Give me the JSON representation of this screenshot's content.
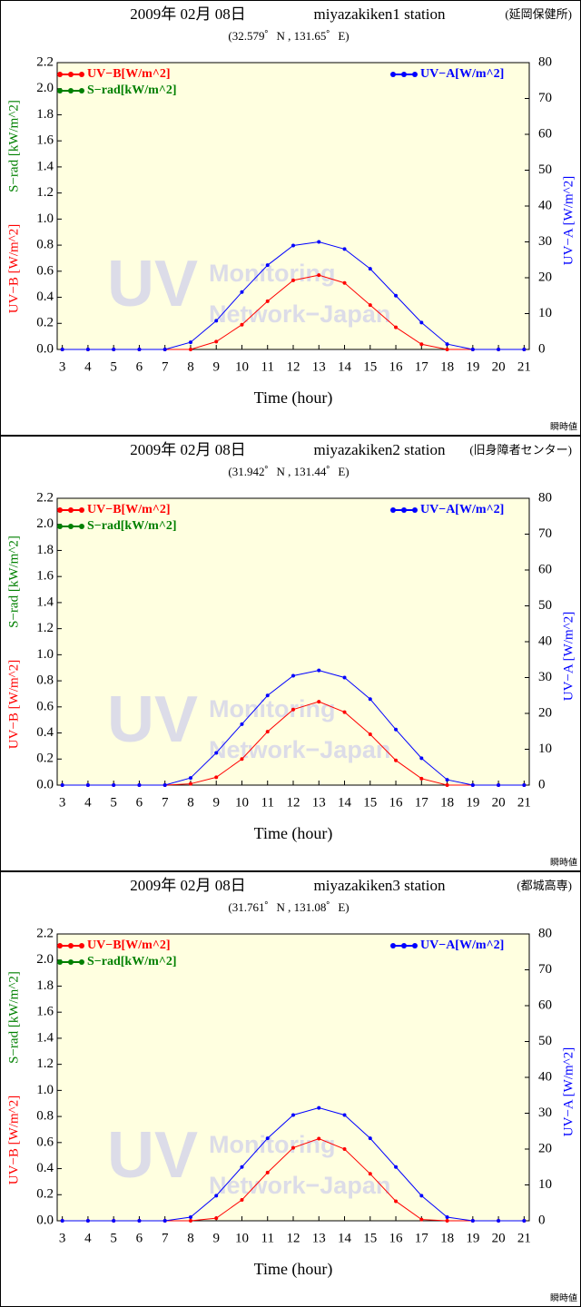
{
  "chart_data": [
    {
      "type": "line",
      "title": "2009年 02月 08日",
      "station": "miyazakiken1 station",
      "location": "(延岡保健所)",
      "subtitle": "(32.579゜N , 131.65゜E)",
      "xlabel": "Time (hour)",
      "ylabel": [
        "UV−B [W/m^2]",
        "S−rad [kW/m^2]"
      ],
      "y2label": "UV−A [W/m^2]",
      "note": "瞬時値",
      "watermark": [
        "UV",
        "Monitoring",
        "Network−Japan"
      ],
      "x": [
        3,
        4,
        5,
        6,
        7,
        8,
        9,
        10,
        11,
        12,
        13,
        14,
        15,
        16,
        17,
        18,
        19,
        20,
        21
      ],
      "xlim": [
        2.8,
        21.2
      ],
      "xticks": [
        3,
        4,
        5,
        6,
        7,
        8,
        9,
        10,
        11,
        12,
        13,
        14,
        15,
        16,
        17,
        18,
        19,
        20,
        21
      ],
      "ylim": [
        0,
        2.2
      ],
      "yticks": [
        {
          "value": 0,
          "label": "0.0"
        },
        {
          "value": 0.2,
          "label": "0.2"
        },
        {
          "value": 0.4,
          "label": "0.4"
        },
        {
          "value": 0.6,
          "label": "0.6"
        },
        {
          "value": 0.8,
          "label": "0.8"
        },
        {
          "value": 1,
          "label": "1.0"
        },
        {
          "value": 1.2,
          "label": "1.2"
        },
        {
          "value": 1.4,
          "label": "1.4"
        },
        {
          "value": 1.6,
          "label": "1.6"
        },
        {
          "value": 1.8,
          "label": "1.8"
        },
        {
          "value": 2,
          "label": "2.0"
        },
        {
          "value": 2.2,
          "label": "2.2"
        }
      ],
      "y2lim": [
        0,
        80
      ],
      "y2ticks": [
        0,
        10,
        20,
        30,
        40,
        50,
        60,
        70,
        80
      ],
      "series": [
        {
          "name": "UV−B[W/m^2]",
          "color": "#ff0000",
          "values": [
            0,
            0,
            0,
            0,
            0,
            0,
            0.06,
            0.19,
            0.37,
            0.53,
            0.57,
            0.51,
            0.34,
            0.17,
            0.04,
            0,
            0,
            0,
            0
          ]
        },
        {
          "name": "S−rad[kW/m^2]",
          "color": "#008000",
          "values": [
            null,
            null,
            null,
            null,
            null,
            null,
            null,
            null,
            null,
            null,
            null,
            null,
            null,
            null,
            null,
            null,
            null,
            null,
            null
          ]
        },
        {
          "name": "UV−A[W/m^2]",
          "color": "#0000ff",
          "axis": "y2",
          "values": [
            0,
            0,
            0,
            0,
            0,
            2,
            8,
            16,
            23.5,
            29,
            30,
            28,
            22.5,
            15,
            7.5,
            1.5,
            0,
            0,
            0
          ]
        }
      ]
    },
    {
      "type": "line",
      "title": "2009年 02月 08日",
      "station": "miyazakiken2 station",
      "location": "(旧身障者センター)",
      "subtitle": "(31.942゜N , 131.44゜E)",
      "xlabel": "Time (hour)",
      "ylabel": [
        "UV−B [W/m^2]",
        "S−rad [kW/m^2]"
      ],
      "y2label": "UV−A [W/m^2]",
      "note": "瞬時値",
      "watermark": [
        "UV",
        "Monitoring",
        "Network−Japan"
      ],
      "x": [
        3,
        4,
        5,
        6,
        7,
        8,
        9,
        10,
        11,
        12,
        13,
        14,
        15,
        16,
        17,
        18,
        19,
        20,
        21
      ],
      "xlim": [
        2.8,
        21.2
      ],
      "xticks": [
        3,
        4,
        5,
        6,
        7,
        8,
        9,
        10,
        11,
        12,
        13,
        14,
        15,
        16,
        17,
        18,
        19,
        20,
        21
      ],
      "ylim": [
        0,
        2.2
      ],
      "yticks": [
        {
          "value": 0,
          "label": "0.0"
        },
        {
          "value": 0.2,
          "label": "0.2"
        },
        {
          "value": 0.4,
          "label": "0.4"
        },
        {
          "value": 0.6,
          "label": "0.6"
        },
        {
          "value": 0.8,
          "label": "0.8"
        },
        {
          "value": 1,
          "label": "1.0"
        },
        {
          "value": 1.2,
          "label": "1.2"
        },
        {
          "value": 1.4,
          "label": "1.4"
        },
        {
          "value": 1.6,
          "label": "1.6"
        },
        {
          "value": 1.8,
          "label": "1.8"
        },
        {
          "value": 2,
          "label": "2.0"
        },
        {
          "value": 2.2,
          "label": "2.2"
        }
      ],
      "y2lim": [
        0,
        80
      ],
      "y2ticks": [
        0,
        10,
        20,
        30,
        40,
        50,
        60,
        70,
        80
      ],
      "series": [
        {
          "name": "UV−B[W/m^2]",
          "color": "#ff0000",
          "values": [
            0,
            0,
            0,
            0,
            0,
            0.01,
            0.06,
            0.2,
            0.41,
            0.58,
            0.64,
            0.56,
            0.39,
            0.19,
            0.05,
            0,
            0,
            0,
            0
          ]
        },
        {
          "name": "S−rad[kW/m^2]",
          "color": "#008000",
          "values": [
            null,
            null,
            null,
            null,
            null,
            null,
            null,
            null,
            null,
            null,
            null,
            null,
            null,
            null,
            null,
            null,
            null,
            null,
            null
          ]
        },
        {
          "name": "UV−A[W/m^2]",
          "color": "#0000ff",
          "axis": "y2",
          "values": [
            0,
            0,
            0,
            0,
            0,
            2,
            9,
            17,
            25,
            30.5,
            32,
            30,
            24,
            15.5,
            7.5,
            1.5,
            0,
            0,
            0
          ]
        }
      ]
    },
    {
      "type": "line",
      "title": "2009年 02月 08日",
      "station": "miyazakiken3 station",
      "location": "(都城高専)",
      "subtitle": "(31.761゜N , 131.08゜E)",
      "xlabel": "Time (hour)",
      "ylabel": [
        "UV−B [W/m^2]",
        "S−rad [kW/m^2]"
      ],
      "y2label": "UV−A [W/m^2]",
      "note": "瞬時値",
      "watermark": [
        "UV",
        "Monitoring",
        "Network−Japan"
      ],
      "x": [
        3,
        4,
        5,
        6,
        7,
        8,
        9,
        10,
        11,
        12,
        13,
        14,
        15,
        16,
        17,
        18,
        19,
        20,
        21
      ],
      "xlim": [
        2.8,
        21.2
      ],
      "xticks": [
        3,
        4,
        5,
        6,
        7,
        8,
        9,
        10,
        11,
        12,
        13,
        14,
        15,
        16,
        17,
        18,
        19,
        20,
        21
      ],
      "ylim": [
        0,
        2.2
      ],
      "yticks": [
        {
          "value": 0,
          "label": "0.0"
        },
        {
          "value": 0.2,
          "label": "0.2"
        },
        {
          "value": 0.4,
          "label": "0.4"
        },
        {
          "value": 0.6,
          "label": "0.6"
        },
        {
          "value": 0.8,
          "label": "0.8"
        },
        {
          "value": 1,
          "label": "1.0"
        },
        {
          "value": 1.2,
          "label": "1.2"
        },
        {
          "value": 1.4,
          "label": "1.4"
        },
        {
          "value": 1.6,
          "label": "1.6"
        },
        {
          "value": 1.8,
          "label": "1.8"
        },
        {
          "value": 2,
          "label": "2.0"
        },
        {
          "value": 2.2,
          "label": "2.2"
        }
      ],
      "y2lim": [
        0,
        80
      ],
      "y2ticks": [
        0,
        10,
        20,
        30,
        40,
        50,
        60,
        70,
        80
      ],
      "series": [
        {
          "name": "UV−B[W/m^2]",
          "color": "#ff0000",
          "values": [
            0,
            0,
            0,
            0,
            0,
            0,
            0.02,
            0.16,
            0.37,
            0.56,
            0.63,
            0.55,
            0.36,
            0.15,
            0.01,
            0,
            0,
            0,
            0
          ]
        },
        {
          "name": "S−rad[kW/m^2]",
          "color": "#008000",
          "values": [
            null,
            null,
            null,
            null,
            null,
            null,
            null,
            null,
            null,
            null,
            null,
            null,
            null,
            null,
            null,
            null,
            null,
            null,
            null
          ]
        },
        {
          "name": "UV−A[W/m^2]",
          "color": "#0000ff",
          "axis": "y2",
          "values": [
            0,
            0,
            0,
            0,
            0,
            1,
            7,
            15,
            23,
            29.5,
            31.5,
            29.5,
            23,
            15,
            7,
            1,
            0,
            0,
            0
          ]
        }
      ]
    }
  ]
}
